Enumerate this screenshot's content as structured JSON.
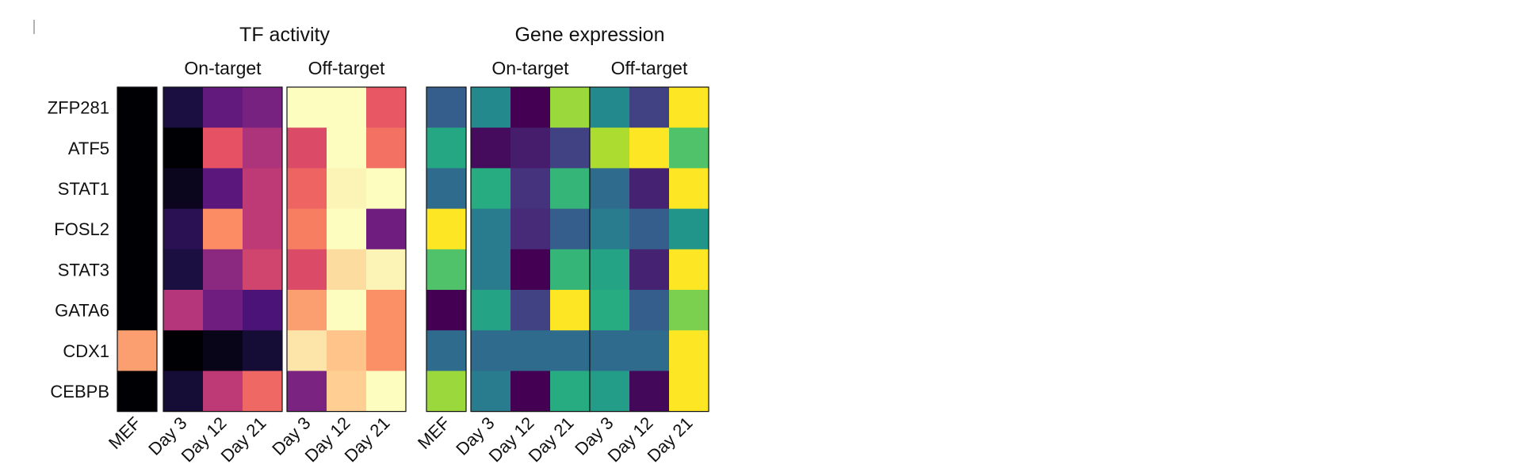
{
  "chart_data": {
    "type": "heatmap",
    "row_labels": [
      "ZFP281",
      "ATF5",
      "STAT1",
      "FOSL2",
      "STAT3",
      "GATA6",
      "CDX1",
      "CEBPB"
    ],
    "panels": [
      {
        "title": "TF activity",
        "colormap": "magma",
        "groups": [
          {
            "label": "",
            "columns": [
              "MEF"
            ],
            "values": [
              [
                0.0
              ],
              [
                0.0
              ],
              [
                0.0
              ],
              [
                0.0
              ],
              [
                0.0
              ],
              [
                0.0
              ],
              [
                0.8
              ],
              [
                0.0
              ]
            ]
          },
          {
            "label": "On-target",
            "columns": [
              "Day 3",
              "Day 12",
              "Day 21"
            ],
            "values": [
              [
                0.12,
                0.3,
                0.35
              ],
              [
                0.0,
                0.63,
                0.48
              ],
              [
                0.05,
                0.28,
                0.52
              ],
              [
                0.16,
                0.76,
                0.52
              ],
              [
                0.12,
                0.4,
                0.57
              ],
              [
                0.5,
                0.33,
                0.24
              ],
              [
                0.0,
                0.04,
                0.1
              ],
              [
                0.1,
                0.52,
                0.68
              ]
            ]
          },
          {
            "label": "Off-target",
            "columns": [
              "Day 3",
              "Day 12",
              "Day 21"
            ],
            "values": [
              [
                1.0,
                1.0,
                0.64
              ],
              [
                0.6,
                1.0,
                0.7
              ],
              [
                0.67,
                0.98,
                1.0
              ],
              [
                0.73,
                1.0,
                0.33
              ],
              [
                0.6,
                0.93,
                0.98
              ],
              [
                0.8,
                1.0,
                0.77
              ],
              [
                0.95,
                0.88,
                0.77
              ],
              [
                0.36,
                0.9,
                1.0
              ]
            ]
          }
        ]
      },
      {
        "title": "Gene expression",
        "colormap": "viridis",
        "groups": [
          {
            "label": "",
            "columns": [
              "MEF"
            ],
            "values": [
              [
                0.3
              ],
              [
                0.6
              ],
              [
                0.35
              ],
              [
                1.0
              ],
              [
                0.72
              ],
              [
                0.0
              ],
              [
                0.35
              ],
              [
                0.85
              ]
            ]
          },
          {
            "label": "On-target",
            "columns": [
              "Day 3",
              "Day 12",
              "Day 21"
            ],
            "values": [
              [
                0.47,
                0.0,
                0.85
              ],
              [
                0.03,
                0.08,
                0.2
              ],
              [
                0.62,
                0.15,
                0.66
              ],
              [
                0.42,
                0.12,
                0.3
              ],
              [
                0.42,
                0.0,
                0.66
              ],
              [
                0.58,
                0.2,
                1.0
              ],
              [
                0.35,
                0.35,
                0.35
              ],
              [
                0.42,
                0.0,
                0.62
              ]
            ]
          },
          {
            "label": "Off-target",
            "columns": [
              "Day 3",
              "Day 12",
              "Day 21"
            ],
            "values": [
              [
                0.47,
                0.2,
                1.0
              ],
              [
                0.88,
                1.0,
                0.72
              ],
              [
                0.35,
                0.1,
                1.0
              ],
              [
                0.42,
                0.3,
                0.52
              ],
              [
                0.58,
                0.1,
                1.0
              ],
              [
                0.62,
                0.3,
                0.8
              ],
              [
                0.35,
                0.35,
                1.0
              ],
              [
                0.55,
                0.02,
                1.0
              ]
            ]
          }
        ]
      }
    ]
  }
}
